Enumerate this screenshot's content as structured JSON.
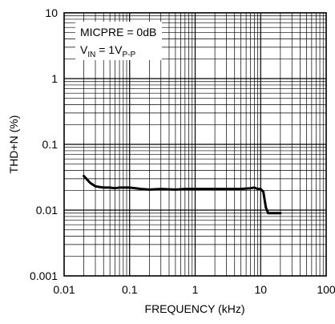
{
  "chart_data": {
    "type": "line",
    "title": "",
    "xlabel": "FREQUENCY (kHz)",
    "ylabel": "THD+N (%)",
    "xscale": "log",
    "yscale": "log",
    "xlim": [
      0.01,
      100
    ],
    "ylim": [
      0.001,
      10
    ],
    "grid": true,
    "x_ticks": [
      "0.01",
      "0.1",
      "1",
      "10",
      "100"
    ],
    "y_ticks": [
      "0.001",
      "0.01",
      "0.1",
      "1",
      "10"
    ],
    "annotations": [
      {
        "text": "MICPRE = 0dB"
      },
      {
        "prefix": "V",
        "sub": "IN",
        "mid": " = 1V",
        "sub2": "P-P"
      }
    ],
    "series": [
      {
        "x": [
          0.02,
          0.025,
          0.03,
          0.04,
          0.05,
          0.06,
          0.07,
          0.08,
          0.1,
          0.15,
          0.2,
          0.3,
          0.5,
          0.7,
          1,
          2,
          3,
          5,
          7,
          8,
          9,
          10,
          11,
          12,
          13,
          15,
          20
        ],
        "y": [
          0.033,
          0.026,
          0.023,
          0.022,
          0.022,
          0.0215,
          0.022,
          0.022,
          0.022,
          0.021,
          0.0205,
          0.021,
          0.0205,
          0.021,
          0.021,
          0.021,
          0.021,
          0.021,
          0.0215,
          0.022,
          0.021,
          0.021,
          0.019,
          0.011,
          0.009,
          0.009,
          0.009
        ]
      }
    ]
  }
}
